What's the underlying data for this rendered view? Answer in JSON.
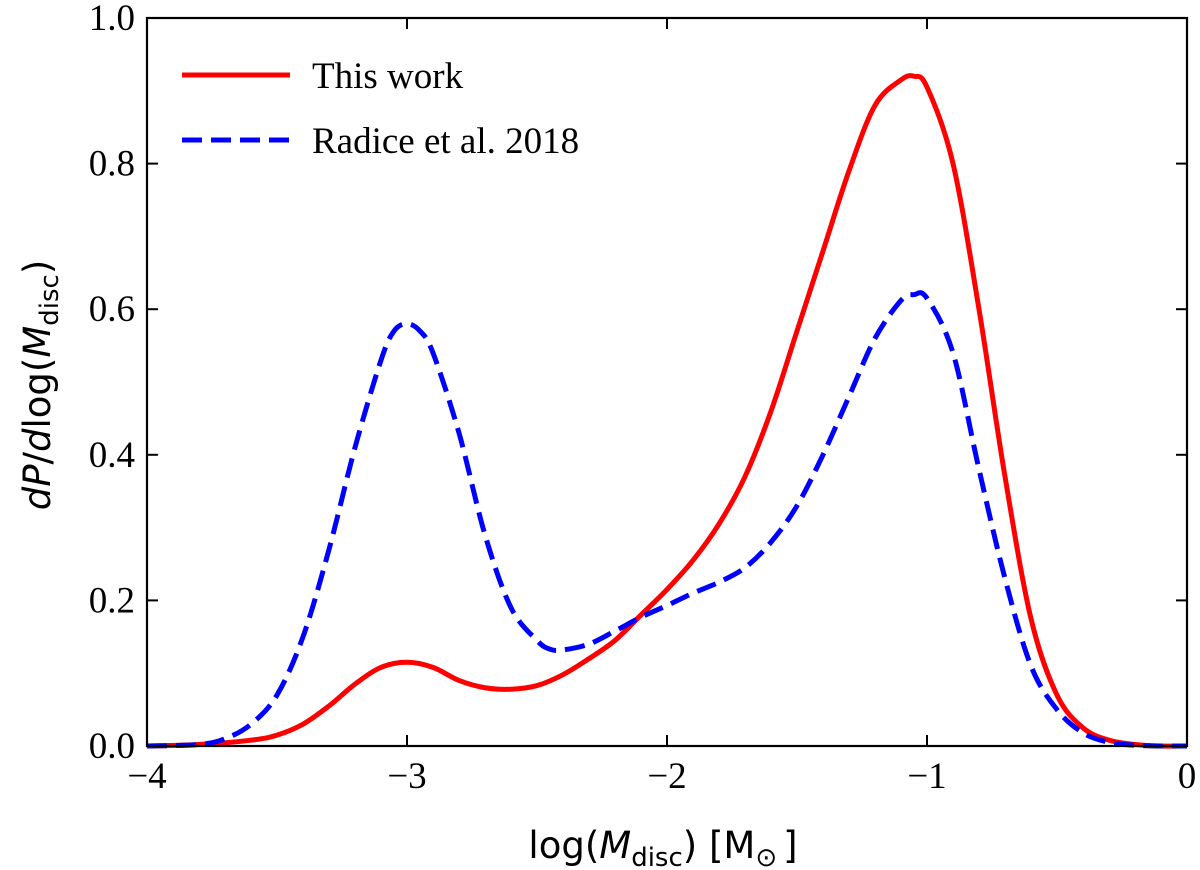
{
  "chart_data": {
    "type": "line",
    "xlabel": {
      "prefix": "log(",
      "symbol": "M",
      "subscript": "disc",
      "suffix": ") [M",
      "unit_symbol": "⊙",
      "close": "]"
    },
    "ylabel": {
      "d1": "d",
      "P": "P",
      "slash": "/",
      "d2": "d",
      "log": "log(",
      "symbol": "M",
      "subscript": "disc",
      "close": ")"
    },
    "xlim": [
      -4,
      0
    ],
    "ylim": [
      0,
      1.0
    ],
    "xticks": [
      -4,
      -3,
      -2,
      -1,
      0
    ],
    "xtick_labels": [
      "−4",
      "−3",
      "−2",
      "−1",
      "0"
    ],
    "yticks": [
      0.0,
      0.2,
      0.4,
      0.6,
      0.8,
      1.0
    ],
    "ytick_labels": [
      "0.0",
      "0.2",
      "0.4",
      "0.6",
      "0.8",
      "1.0"
    ],
    "legend_position": "top-left",
    "series": [
      {
        "name": "This work",
        "color": "#ff0000",
        "style": "solid",
        "x": [
          -4.0,
          -3.8,
          -3.6,
          -3.5,
          -3.4,
          -3.3,
          -3.2,
          -3.1,
          -3.0,
          -2.9,
          -2.8,
          -2.7,
          -2.6,
          -2.5,
          -2.4,
          -2.3,
          -2.2,
          -2.1,
          -2.0,
          -1.9,
          -1.8,
          -1.7,
          -1.6,
          -1.5,
          -1.4,
          -1.3,
          -1.2,
          -1.1,
          -1.05,
          -1.0,
          -0.9,
          -0.8,
          -0.7,
          -0.6,
          -0.5,
          -0.4,
          -0.3,
          -0.2,
          -0.1,
          0.0
        ],
        "y": [
          0.0,
          0.002,
          0.008,
          0.015,
          0.03,
          0.055,
          0.085,
          0.108,
          0.115,
          0.108,
          0.09,
          0.08,
          0.078,
          0.083,
          0.098,
          0.12,
          0.145,
          0.18,
          0.215,
          0.255,
          0.305,
          0.37,
          0.46,
          0.57,
          0.68,
          0.79,
          0.88,
          0.915,
          0.92,
          0.905,
          0.8,
          0.6,
          0.37,
          0.175,
          0.07,
          0.025,
          0.008,
          0.002,
          0.0,
          0.0
        ]
      },
      {
        "name": "Radice et al. 2018",
        "color": "#0000ff",
        "style": "dashed",
        "x": [
          -4.0,
          -3.8,
          -3.7,
          -3.6,
          -3.5,
          -3.4,
          -3.3,
          -3.2,
          -3.1,
          -3.05,
          -3.0,
          -2.95,
          -2.9,
          -2.8,
          -2.7,
          -2.6,
          -2.5,
          -2.45,
          -2.4,
          -2.3,
          -2.2,
          -2.1,
          -2.0,
          -1.9,
          -1.8,
          -1.7,
          -1.6,
          -1.5,
          -1.4,
          -1.3,
          -1.2,
          -1.1,
          -1.05,
          -1.0,
          -0.9,
          -0.8,
          -0.7,
          -0.6,
          -0.5,
          -0.4,
          -0.3,
          -0.2,
          -0.1,
          0.0
        ],
        "y": [
          0.0,
          0.002,
          0.01,
          0.03,
          0.07,
          0.15,
          0.27,
          0.41,
          0.53,
          0.57,
          0.58,
          0.57,
          0.54,
          0.43,
          0.29,
          0.19,
          0.145,
          0.133,
          0.132,
          0.14,
          0.158,
          0.177,
          0.193,
          0.21,
          0.225,
          0.245,
          0.28,
          0.33,
          0.4,
          0.48,
          0.56,
          0.612,
          0.62,
          0.615,
          0.54,
          0.38,
          0.23,
          0.11,
          0.05,
          0.018,
          0.005,
          0.001,
          0.0,
          0.0
        ]
      }
    ]
  }
}
